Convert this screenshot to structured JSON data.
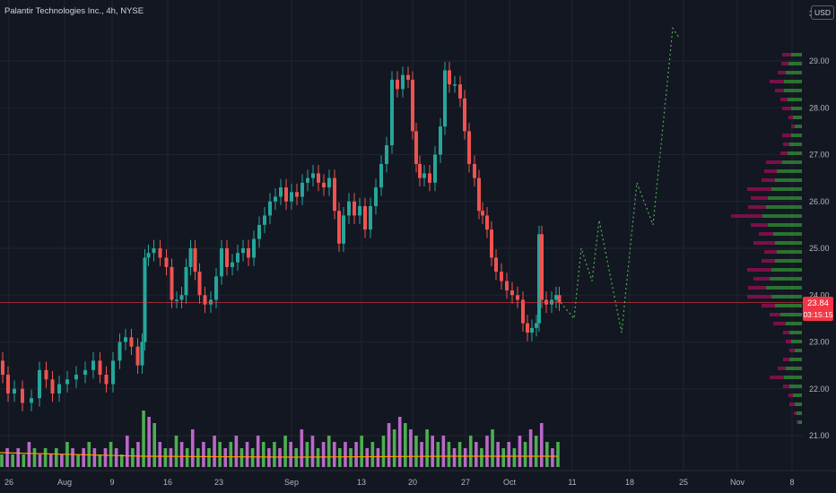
{
  "header": {
    "symbol_title": "Palantir Technologies Inc., 4h, NYSE",
    "currency": "USD",
    "top_tick_fragment": "30"
  },
  "price_tag": {
    "price": "23.84",
    "countdown": "03:15:15"
  },
  "colors": {
    "background": "#131722",
    "grid": "#1f2430",
    "up": "#26a69a",
    "down": "#ef5350",
    "volume_up": "#4caf50",
    "volume_down": "#ba68c8",
    "volume_ma": "#ff9800",
    "projection": "#4caf50",
    "last_price_line": "#f23645",
    "profile_up": "#2e7d32",
    "profile_down": "#880e4f"
  },
  "chart_data": {
    "type": "candlestick",
    "title": "Palantir Technologies Inc., 4h, NYSE",
    "currency": "USD",
    "y_axis": {
      "ticks": [
        "21.00",
        "22.00",
        "23.00",
        "24.00",
        "25.00",
        "26.00",
        "27.00",
        "28.00",
        "29.00"
      ],
      "range": [
        20.5,
        30.2
      ]
    },
    "x_axis": {
      "ticks": [
        "26",
        "Aug",
        "9",
        "16",
        "23",
        "Sep",
        "13",
        "20",
        "27",
        "Oct",
        "11",
        "18",
        "25",
        "Nov",
        "8"
      ]
    },
    "last_price": 23.84,
    "price_series_approx": [
      [
        0,
        22.6
      ],
      [
        6,
        22.3
      ],
      [
        12,
        21.9
      ],
      [
        20,
        22.0
      ],
      [
        30,
        21.7
      ],
      [
        40,
        21.8
      ],
      [
        48,
        22.4
      ],
      [
        55,
        22.2
      ],
      [
        62,
        21.9
      ],
      [
        70,
        22.1
      ],
      [
        80,
        22.2
      ],
      [
        90,
        22.3
      ],
      [
        100,
        22.4
      ],
      [
        108,
        22.6
      ],
      [
        115,
        22.3
      ],
      [
        122,
        22.1
      ],
      [
        130,
        22.6
      ],
      [
        137,
        23.0
      ],
      [
        143,
        23.1
      ],
      [
        150,
        22.9
      ],
      [
        157,
        22.5
      ],
      [
        160,
        23.0
      ],
      [
        163,
        24.8
      ],
      [
        168,
        24.9
      ],
      [
        175,
        25.0
      ],
      [
        182,
        24.8
      ],
      [
        189,
        24.6
      ],
      [
        194,
        23.9
      ],
      [
        200,
        23.9
      ],
      [
        205,
        24.0
      ],
      [
        210,
        24.6
      ],
      [
        215,
        25.0
      ],
      [
        220,
        24.5
      ],
      [
        225,
        24.0
      ],
      [
        232,
        23.8
      ],
      [
        238,
        23.9
      ],
      [
        244,
        24.4
      ],
      [
        250,
        25.0
      ],
      [
        256,
        24.6
      ],
      [
        262,
        24.7
      ],
      [
        268,
        24.9
      ],
      [
        274,
        25.0
      ],
      [
        280,
        24.8
      ],
      [
        286,
        25.2
      ],
      [
        292,
        25.5
      ],
      [
        298,
        25.7
      ],
      [
        304,
        26.0
      ],
      [
        310,
        26.1
      ],
      [
        316,
        26.3
      ],
      [
        322,
        26.0
      ],
      [
        328,
        26.2
      ],
      [
        334,
        26.1
      ],
      [
        340,
        26.4
      ],
      [
        346,
        26.5
      ],
      [
        352,
        26.6
      ],
      [
        358,
        26.4
      ],
      [
        364,
        26.3
      ],
      [
        370,
        26.5
      ],
      [
        376,
        25.8
      ],
      [
        380,
        25.1
      ],
      [
        386,
        25.7
      ],
      [
        392,
        26.0
      ],
      [
        398,
        25.7
      ],
      [
        404,
        25.9
      ],
      [
        410,
        25.4
      ],
      [
        416,
        25.9
      ],
      [
        422,
        26.3
      ],
      [
        428,
        26.8
      ],
      [
        434,
        27.2
      ],
      [
        440,
        28.6
      ],
      [
        446,
        28.4
      ],
      [
        452,
        28.7
      ],
      [
        458,
        28.6
      ],
      [
        462,
        27.5
      ],
      [
        466,
        26.8
      ],
      [
        470,
        26.5
      ],
      [
        476,
        26.6
      ],
      [
        482,
        26.4
      ],
      [
        488,
        27.0
      ],
      [
        494,
        27.6
      ],
      [
        498,
        28.8
      ],
      [
        504,
        28.5
      ],
      [
        510,
        28.5
      ],
      [
        516,
        28.2
      ],
      [
        520,
        27.5
      ],
      [
        526,
        26.8
      ],
      [
        532,
        26.5
      ],
      [
        536,
        25.8
      ],
      [
        540,
        25.7
      ],
      [
        546,
        25.4
      ],
      [
        550,
        24.8
      ],
      [
        556,
        24.5
      ],
      [
        562,
        24.3
      ],
      [
        568,
        24.1
      ],
      [
        574,
        24.0
      ],
      [
        580,
        23.9
      ],
      [
        586,
        23.4
      ],
      [
        590,
        23.2
      ],
      [
        596,
        23.3
      ],
      [
        600,
        23.4
      ],
      [
        602,
        25.3
      ],
      [
        606,
        23.9
      ],
      [
        612,
        23.8
      ],
      [
        618,
        23.9
      ],
      [
        622,
        24.0
      ],
      [
        625,
        23.84
      ]
    ],
    "projection_path_approx": [
      [
        625,
        23.84
      ],
      [
        640,
        23.5
      ],
      [
        648,
        25.0
      ],
      [
        660,
        24.3
      ],
      [
        668,
        25.6
      ],
      [
        693,
        23.2
      ],
      [
        710,
        26.4
      ],
      [
        728,
        25.5
      ],
      [
        750,
        29.7
      ],
      [
        757,
        29.5
      ]
    ],
    "volume_approx": [
      2,
      3,
      2,
      3,
      2,
      4,
      3,
      2,
      3,
      2,
      3,
      2,
      4,
      3,
      2,
      3,
      4,
      3,
      2,
      3,
      4,
      3,
      2,
      5,
      3,
      4,
      9,
      8,
      7,
      4,
      3,
      3,
      5,
      4,
      3,
      6,
      3,
      4,
      3,
      5,
      4,
      3,
      4,
      5,
      3,
      4,
      3,
      5,
      4,
      3,
      4,
      3,
      5,
      4,
      3,
      6,
      4,
      5,
      3,
      4,
      5,
      4,
      3,
      4,
      3,
      4,
      5,
      3,
      4,
      3,
      5,
      7,
      6,
      8,
      7,
      6,
      5,
      4,
      6,
      5,
      4,
      5,
      4,
      3,
      4,
      3,
      5,
      4,
      3,
      5,
      6,
      4,
      3,
      4,
      3,
      5,
      4,
      6,
      5,
      7,
      4,
      3,
      4
    ],
    "volume_profile": "horizontal up/down volume bars per price level on right side"
  }
}
